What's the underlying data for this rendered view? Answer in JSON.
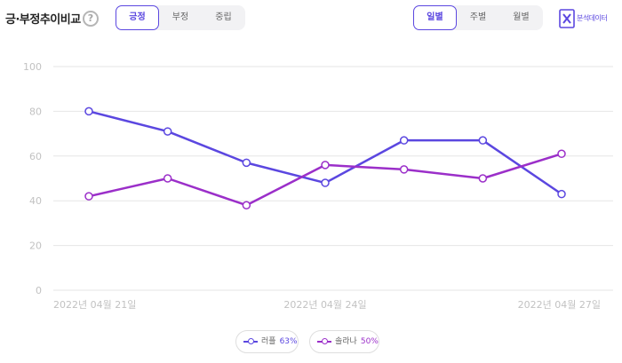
{
  "header": {
    "title": "긍·부정추이비교",
    "help_label": "?",
    "sentiment_tabs": [
      "긍정",
      "부정",
      "중립"
    ],
    "sentiment_active": 0,
    "period_tabs": [
      "일별",
      "주별",
      "월별"
    ],
    "period_active": 0,
    "export_label": "분석데이터"
  },
  "colors": {
    "accent": "#5b47e0",
    "series_a": "#5b47e0",
    "series_b": "#9b2fc9",
    "grid": "#e6e6e6",
    "tick": "#c2c2c2"
  },
  "chart_data": {
    "type": "line",
    "x": [
      "2022-04-21",
      "2022-04-22",
      "2022-04-23",
      "2022-04-24",
      "2022-04-25",
      "2022-04-26",
      "2022-04-27"
    ],
    "x_tick_labels": [
      "2022년 04월 21일",
      "2022년 04월 24일",
      "2022년 04월 27일"
    ],
    "x_tick_index": [
      0,
      3,
      6
    ],
    "ylim": [
      0,
      100
    ],
    "yticks": [
      0,
      20,
      40,
      60,
      80,
      100
    ],
    "grid": true,
    "legend_position": "bottom-center",
    "series": [
      {
        "name": "러플",
        "share": "63%",
        "color": "#5b47e0",
        "values": [
          80,
          71,
          57,
          48,
          67,
          67,
          43
        ]
      },
      {
        "name": "솔라나",
        "share": "50%",
        "color": "#9b2fc9",
        "values": [
          42,
          50,
          38,
          56,
          54,
          50,
          61
        ]
      }
    ]
  }
}
